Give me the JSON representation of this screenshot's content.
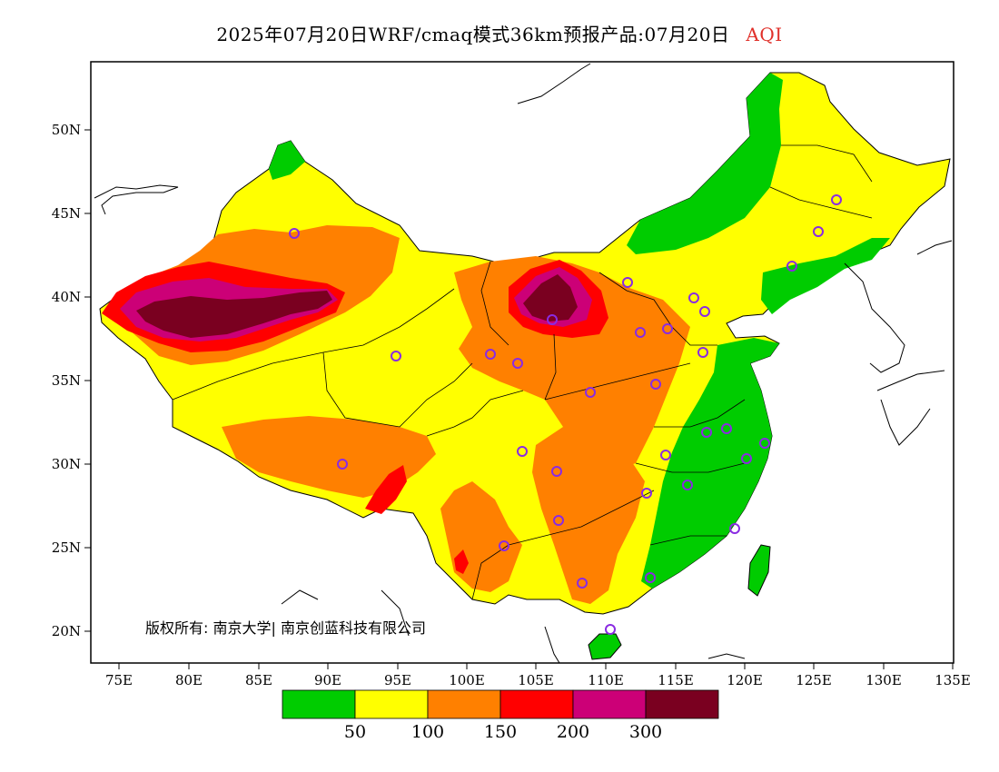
{
  "title": {
    "main": "2025年07月20日WRF/cmaq模式36km预报产品:07月20日",
    "pollutant": "AQI"
  },
  "axes": {
    "lat_labels": [
      "50N",
      "45N",
      "40N",
      "35N",
      "30N",
      "25N",
      "20N"
    ],
    "lon_labels": [
      "75E",
      "80E",
      "85E",
      "90E",
      "95E",
      "100E",
      "105E",
      "110E",
      "115E",
      "120E",
      "125E",
      "130E",
      "135E"
    ]
  },
  "copyright": "版权所有: 南京大学| 南京创蓝科技有限公司",
  "legend": {
    "colors": [
      "#00cc00",
      "#ffff00",
      "#ff8000",
      "#ff0000",
      "#cc0077",
      "#7a0020"
    ],
    "labels": [
      "50",
      "100",
      "150",
      "200",
      "300"
    ]
  },
  "colors": {
    "good": "#00cc00",
    "moderate": "#ffff00",
    "sensitive": "#ff8000",
    "unhealthy": "#ff0000",
    "very_unhealthy": "#cc0077",
    "hazardous": "#7a0020",
    "station_marker": "#8a2be2"
  }
}
